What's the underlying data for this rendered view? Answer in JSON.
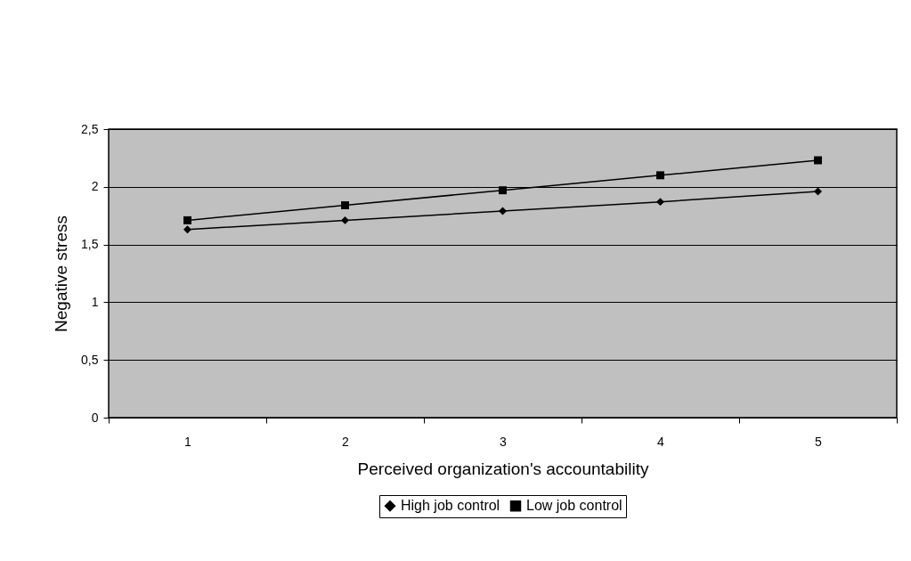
{
  "chart_data": {
    "type": "line",
    "xlabel": "Perceived organization's accountability",
    "ylabel": "Negative stress",
    "categories": [
      "1",
      "2",
      "3",
      "4",
      "5"
    ],
    "series": [
      {
        "name": "High job control",
        "color": "#000000",
        "marker": "diamond",
        "values": [
          1.63,
          1.71,
          1.79,
          1.87,
          1.96
        ]
      },
      {
        "name": "Low job control",
        "color": "#000000",
        "marker": "square",
        "values": [
          1.71,
          1.84,
          1.97,
          2.1,
          2.23
        ]
      }
    ],
    "ylim": [
      0,
      2.5
    ],
    "yticks": [
      0,
      {
        "value": 0.5,
        "label": "0,5"
      },
      1,
      {
        "value": 1.5,
        "label": "1,5"
      },
      2,
      {
        "value": 2.5,
        "label": "2,5"
      }
    ],
    "grid": "y",
    "legend": "bottom",
    "line_style": "solid"
  }
}
